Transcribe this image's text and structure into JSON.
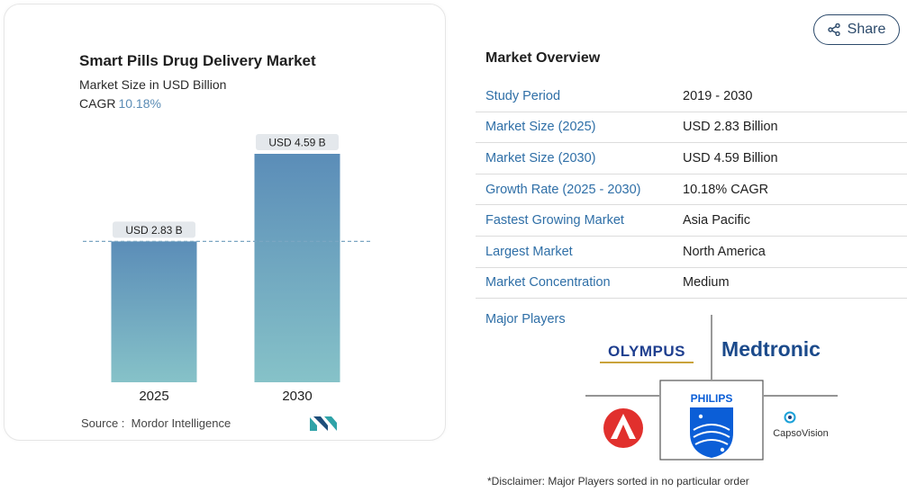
{
  "chart_data": {
    "type": "bar",
    "title": "Smart Pills Drug Delivery Market",
    "subtitle": "Market Size in USD Billion",
    "cagr_label": "CAGR",
    "cagr_value": "10.18%",
    "categories": [
      "2025",
      "2030"
    ],
    "values": [
      2.83,
      4.59
    ],
    "data_labels": [
      "USD 2.83 B",
      "USD 4.59 B"
    ],
    "reference_line_value": 2.83,
    "ylim": [
      0,
      4.59
    ],
    "grid": false,
    "colors": {
      "bar_top": "#5b8db8",
      "bar_bottom": "#86c2c8",
      "label_bg": "#e4e8ec",
      "ref_line": "#7aa6c2"
    }
  },
  "source": {
    "label": "Source :",
    "value": "Mordor Intelligence"
  },
  "share": {
    "label": "Share",
    "icon": "share-icon"
  },
  "overview": {
    "title": "Market Overview",
    "rows": [
      {
        "key": "Study Period",
        "value": "2019 - 2030"
      },
      {
        "key": "Market Size (2025)",
        "value": "USD 2.83 Billion"
      },
      {
        "key": "Market Size (2030)",
        "value": "USD 4.59 Billion"
      },
      {
        "key": "Growth Rate (2025 - 2030)",
        "value": "10.18% CAGR"
      },
      {
        "key": "Fastest Growing Market",
        "value": "Asia Pacific"
      },
      {
        "key": "Largest Market",
        "value": "North America"
      },
      {
        "key": "Market Concentration",
        "value": "Medium"
      }
    ]
  },
  "players": {
    "label": "Major Players",
    "logos": [
      "OLYMPUS",
      "Medtronic",
      "PHILIPS",
      "CapsoVision"
    ]
  },
  "disclaimer": "*Disclaimer: Major Players sorted in no particular order"
}
